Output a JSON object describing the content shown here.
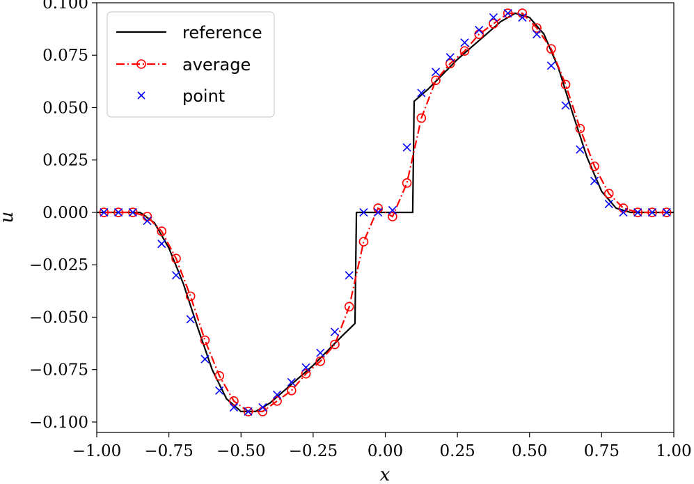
{
  "chart_data": {
    "type": "line",
    "xlabel": "x",
    "ylabel": "u",
    "xlim": [
      -1.0,
      1.0
    ],
    "ylim": [
      -0.105,
      0.1
    ],
    "grid": false,
    "legend_position": "top-left",
    "x_ticks": [
      -1.0,
      -0.75,
      -0.5,
      -0.25,
      0.0,
      0.25,
      0.5,
      0.75,
      1.0
    ],
    "x_tick_labels": [
      "−1.00",
      "−0.75",
      "−0.50",
      "−0.25",
      "0.00",
      "0.25",
      "0.50",
      "0.75",
      "1.00"
    ],
    "y_ticks": [
      0.1,
      0.075,
      0.05,
      0.025,
      0.0,
      -0.025,
      -0.05,
      -0.075,
      -0.1
    ],
    "y_tick_labels": [
      "0.100",
      "0.075",
      "0.050",
      "0.025",
      "0.000",
      "−0.025",
      "−0.050",
      "−0.075",
      "−0.100"
    ],
    "series": [
      {
        "name": "reference",
        "style": "solid",
        "color": "#000000",
        "x": [
          -1.0,
          -0.95,
          -0.9,
          -0.85,
          -0.8,
          -0.75,
          -0.7,
          -0.65,
          -0.6,
          -0.55,
          -0.5,
          -0.45,
          -0.4,
          -0.35,
          -0.3,
          -0.25,
          -0.2,
          -0.15,
          -0.105,
          -0.1,
          -0.05,
          0.0,
          0.05,
          0.095,
          0.1,
          0.15,
          0.2,
          0.25,
          0.3,
          0.35,
          0.4,
          0.45,
          0.5,
          0.55,
          0.6,
          0.65,
          0.7,
          0.75,
          0.8,
          0.85,
          0.9,
          0.95,
          1.0
        ],
        "y": [
          0.0,
          0.0,
          0.0,
          0.0,
          -0.005,
          -0.017,
          -0.034,
          -0.055,
          -0.075,
          -0.089,
          -0.095,
          -0.095,
          -0.091,
          -0.085,
          -0.079,
          -0.073,
          -0.066,
          -0.059,
          -0.053,
          0.0,
          0.0,
          0.0,
          0.0,
          0.0,
          0.053,
          0.059,
          0.066,
          0.073,
          0.079,
          0.085,
          0.091,
          0.095,
          0.093,
          0.085,
          0.069,
          0.047,
          0.026,
          0.01,
          0.002,
          0.0,
          0.0,
          0.0,
          0.0
        ]
      },
      {
        "name": "average",
        "style": "dashdot-circle",
        "color": "#ff0000",
        "x": [
          -0.975,
          -0.925,
          -0.875,
          -0.825,
          -0.775,
          -0.725,
          -0.675,
          -0.625,
          -0.575,
          -0.525,
          -0.475,
          -0.425,
          -0.375,
          -0.325,
          -0.275,
          -0.225,
          -0.175,
          -0.125,
          -0.075,
          -0.025,
          0.025,
          0.075,
          0.125,
          0.175,
          0.225,
          0.275,
          0.325,
          0.375,
          0.425,
          0.475,
          0.525,
          0.575,
          0.625,
          0.675,
          0.725,
          0.775,
          0.825,
          0.875,
          0.925,
          0.975
        ],
        "y": [
          0.0,
          0.0,
          0.0,
          -0.002,
          -0.009,
          -0.022,
          -0.04,
          -0.061,
          -0.078,
          -0.09,
          -0.095,
          -0.095,
          -0.09,
          -0.085,
          -0.077,
          -0.071,
          -0.063,
          -0.045,
          -0.014,
          0.002,
          -0.002,
          0.014,
          0.045,
          0.063,
          0.071,
          0.077,
          0.085,
          0.09,
          0.095,
          0.095,
          0.088,
          0.078,
          0.061,
          0.04,
          0.022,
          0.009,
          0.002,
          0.0,
          0.0,
          0.0
        ]
      },
      {
        "name": "point",
        "style": "x-markers",
        "color": "#0000ff",
        "x": [
          -0.975,
          -0.925,
          -0.875,
          -0.825,
          -0.775,
          -0.725,
          -0.675,
          -0.625,
          -0.575,
          -0.525,
          -0.475,
          -0.425,
          -0.375,
          -0.325,
          -0.275,
          -0.225,
          -0.175,
          -0.125,
          -0.075,
          -0.025,
          0.025,
          0.075,
          0.125,
          0.175,
          0.225,
          0.275,
          0.325,
          0.375,
          0.425,
          0.475,
          0.525,
          0.575,
          0.625,
          0.675,
          0.725,
          0.775,
          0.825,
          0.875,
          0.925,
          0.975
        ],
        "y": [
          0.0,
          0.0,
          0.0,
          -0.004,
          -0.015,
          -0.03,
          -0.051,
          -0.07,
          -0.085,
          -0.093,
          -0.095,
          -0.093,
          -0.087,
          -0.081,
          -0.074,
          -0.067,
          -0.057,
          -0.03,
          0.0,
          0.0,
          0.001,
          0.031,
          0.057,
          0.067,
          0.074,
          0.081,
          0.087,
          0.093,
          0.095,
          0.093,
          0.085,
          0.07,
          0.051,
          0.03,
          0.015,
          0.004,
          0.0,
          0.0,
          0.0,
          0.0
        ]
      }
    ]
  }
}
